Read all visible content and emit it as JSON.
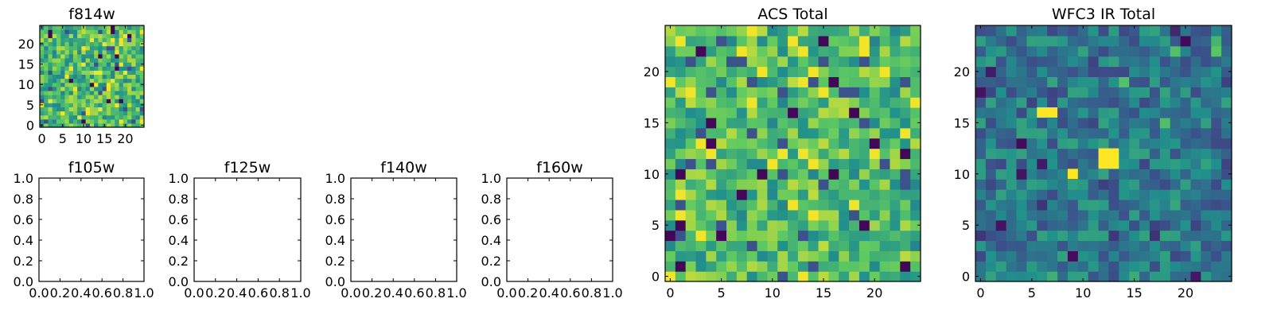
{
  "figure": {
    "background": "#ffffff"
  },
  "colormap": [
    "#440154",
    "#3b528b",
    "#21918c",
    "#5ec962",
    "#fde725"
  ],
  "chart_data": [
    {
      "id": "f814w",
      "type": "heatmap",
      "title": "f814w",
      "grid_size": 25,
      "seed": 814,
      "mode": "acs",
      "xticks": [
        "0",
        "5",
        "10",
        "15",
        "20"
      ],
      "yticks": [
        "0",
        "5",
        "10",
        "15",
        "20"
      ]
    },
    {
      "id": "f105w",
      "type": "empty",
      "title": "f105w",
      "xlim": [
        0,
        1
      ],
      "ylim": [
        0,
        1
      ],
      "xticks": [
        "0.0",
        "0.2",
        "0.4",
        "0.6",
        "0.8",
        "1.0"
      ],
      "yticks": [
        "0.0",
        "0.2",
        "0.4",
        "0.6",
        "0.8",
        "1.0"
      ]
    },
    {
      "id": "f125w",
      "type": "empty",
      "title": "f125w",
      "xlim": [
        0,
        1
      ],
      "ylim": [
        0,
        1
      ],
      "xticks": [
        "0.0",
        "0.2",
        "0.4",
        "0.6",
        "0.8",
        "1.0"
      ],
      "yticks": [
        "0.0",
        "0.2",
        "0.4",
        "0.6",
        "0.8",
        "1.0"
      ]
    },
    {
      "id": "f140w",
      "type": "empty",
      "title": "f140w",
      "xlim": [
        0,
        1
      ],
      "ylim": [
        0,
        1
      ],
      "xticks": [
        "0.0",
        "0.2",
        "0.4",
        "0.6",
        "0.8",
        "1.0"
      ],
      "yticks": [
        "0.0",
        "0.2",
        "0.4",
        "0.6",
        "0.8",
        "1.0"
      ]
    },
    {
      "id": "f160w",
      "type": "empty",
      "title": "f160w",
      "xlim": [
        0,
        1
      ],
      "ylim": [
        0,
        1
      ],
      "xticks": [
        "0.0",
        "0.2",
        "0.4",
        "0.6",
        "0.8",
        "1.0"
      ],
      "yticks": [
        "0.0",
        "0.2",
        "0.4",
        "0.6",
        "0.8",
        "1.0"
      ]
    },
    {
      "id": "acs-total",
      "type": "heatmap",
      "title": "ACS Total",
      "grid_size": 25,
      "seed": 2024,
      "mode": "acs",
      "xticks": [
        "0",
        "5",
        "10",
        "15",
        "20"
      ],
      "yticks": [
        "0",
        "5",
        "10",
        "15",
        "20"
      ]
    },
    {
      "id": "wfc3-ir-total",
      "type": "heatmap",
      "title": "WFC3 IR Total",
      "grid_size": 25,
      "seed": 333,
      "mode": "ir",
      "highlights": [
        {
          "x": 12,
          "y": 11,
          "w": 2,
          "h": 2
        },
        {
          "x": 6,
          "y": 16,
          "w": 2,
          "h": 1
        },
        {
          "x": 9,
          "y": 10,
          "w": 1,
          "h": 1
        }
      ],
      "xticks": [
        "0",
        "5",
        "10",
        "15",
        "20"
      ],
      "yticks": [
        "0",
        "5",
        "10",
        "15",
        "20"
      ]
    }
  ]
}
